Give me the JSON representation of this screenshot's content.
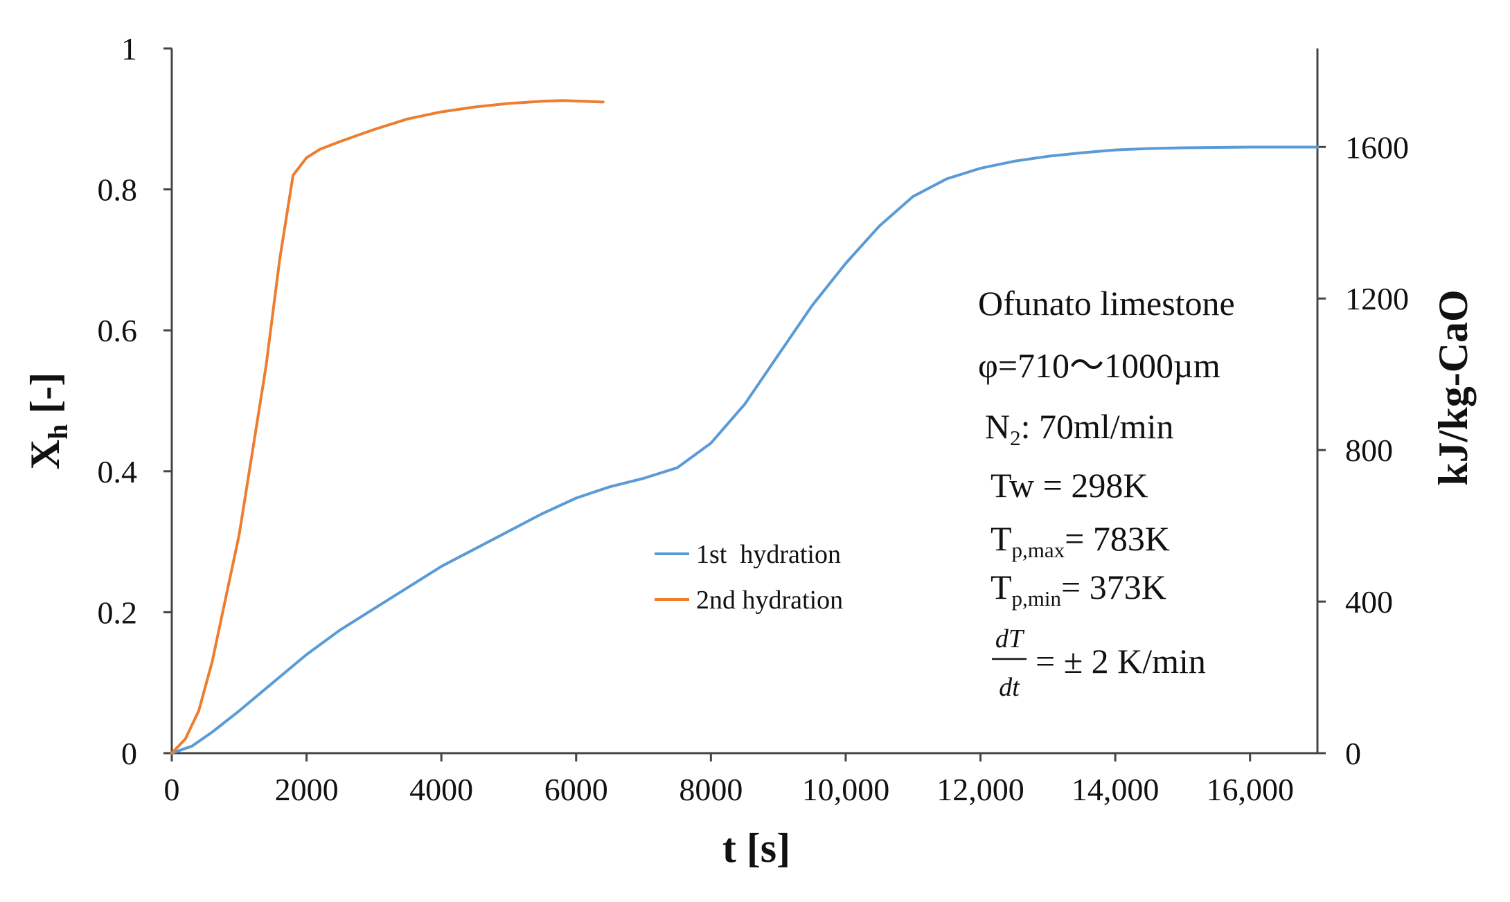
{
  "chart_data": {
    "type": "line",
    "xlabel": "t [s]",
    "ylabel": {
      "base": "X",
      "subscript": "h",
      "unit": " [-]"
    },
    "y2label": "kJ/kg-CaO",
    "xlim": [
      0,
      17000
    ],
    "ylim": [
      0,
      1
    ],
    "y2lim": [
      0,
      1860
    ],
    "x_ticks": [
      {
        "value": 0,
        "label": "0"
      },
      {
        "value": 2000,
        "label": "2000"
      },
      {
        "value": 4000,
        "label": "4000"
      },
      {
        "value": 6000,
        "label": "6000"
      },
      {
        "value": 8000,
        "label": "8000"
      },
      {
        "value": 10000,
        "label": "10,000"
      },
      {
        "value": 12000,
        "label": "12,000"
      },
      {
        "value": 14000,
        "label": "14,000"
      },
      {
        "value": 16000,
        "label": "16,000"
      }
    ],
    "y_ticks": [
      {
        "value": 0,
        "label": "0"
      },
      {
        "value": 0.2,
        "label": "0.2"
      },
      {
        "value": 0.4,
        "label": "0.4"
      },
      {
        "value": 0.6,
        "label": "0.6"
      },
      {
        "value": 0.8,
        "label": "0.8"
      },
      {
        "value": 1,
        "label": "1"
      }
    ],
    "y2_ticks": [
      {
        "value": 0,
        "label": "0"
      },
      {
        "value": 400,
        "label": "400"
      },
      {
        "value": 800,
        "label": "800"
      },
      {
        "value": 1200,
        "label": "1200"
      },
      {
        "value": 1600,
        "label": "1600"
      }
    ],
    "grid": false,
    "legend_position": "center",
    "series": [
      {
        "name": "1st  hydration",
        "color": "#5b9bd5",
        "x": [
          0,
          300,
          600,
          1000,
          1500,
          2000,
          2500,
          3000,
          3500,
          4000,
          4500,
          5000,
          5500,
          6000,
          6500,
          7000,
          7500,
          8000,
          8500,
          9000,
          9500,
          10000,
          10500,
          11000,
          11500,
          12000,
          12500,
          13000,
          13500,
          14000,
          14500,
          15000,
          16000,
          17000
        ],
        "y": [
          0,
          0.01,
          0.03,
          0.06,
          0.1,
          0.14,
          0.175,
          0.205,
          0.235,
          0.265,
          0.29,
          0.315,
          0.34,
          0.362,
          0.378,
          0.39,
          0.405,
          0.44,
          0.495,
          0.565,
          0.635,
          0.695,
          0.748,
          0.79,
          0.815,
          0.83,
          0.84,
          0.847,
          0.852,
          0.856,
          0.858,
          0.859,
          0.86,
          0.86
        ]
      },
      {
        "name": "2nd hydration",
        "color": "#ed7d31",
        "x": [
          0,
          200,
          400,
          600,
          800,
          1000,
          1200,
          1400,
          1600,
          1800,
          2000,
          2200,
          2500,
          3000,
          3500,
          4000,
          4500,
          5000,
          5500,
          5800,
          6100,
          6400
        ],
        "y": [
          0,
          0.02,
          0.06,
          0.13,
          0.22,
          0.31,
          0.43,
          0.55,
          0.7,
          0.82,
          0.845,
          0.857,
          0.868,
          0.885,
          0.9,
          0.91,
          0.917,
          0.922,
          0.925,
          0.926,
          0.925,
          0.924
        ]
      }
    ],
    "annotations": {
      "material": "Ofunato limestone",
      "size": "φ=710〜1000µm",
      "n2": {
        "base": "N",
        "subscript": "2",
        "rest": ": 70ml/min"
      },
      "tw": "Tw = 298K",
      "tpmax": {
        "base": "T",
        "subscript": "p,max",
        "rest": "= 783K"
      },
      "tpmin": {
        "base": "T",
        "subscript": "p,min",
        "rest": "= 373K"
      },
      "rate": {
        "numerator": "dT",
        "denominator": "dt",
        "rest": "= ± 2 K/min"
      }
    }
  }
}
